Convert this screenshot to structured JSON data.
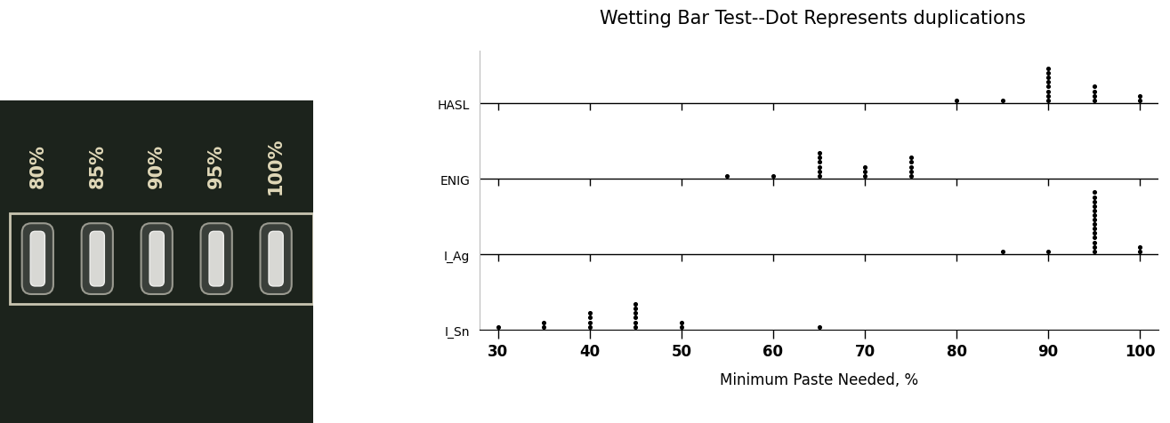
{
  "photo": {
    "labels": [
      "80%",
      "85%",
      "90%",
      "95%",
      "100%"
    ]
  },
  "chart_data": {
    "type": "dot",
    "title": "Wetting Bar Test--Dot Represents duplications",
    "x_label": "Minimum Paste Needed, %",
    "categories": [
      "HASL",
      "ENIG",
      "I_Ag",
      "I_Sn"
    ],
    "values": [
      [
        80,
        85,
        90,
        90,
        90,
        90,
        90,
        90,
        90,
        90,
        95,
        95,
        95,
        95,
        100,
        100
      ],
      [
        55,
        60,
        65,
        65,
        65,
        65,
        65,
        65,
        70,
        70,
        70,
        75,
        75,
        75,
        75,
        75
      ],
      [
        85,
        90,
        95,
        95,
        95,
        95,
        95,
        95,
        95,
        95,
        95,
        95,
        95,
        95,
        95,
        95,
        100,
        100
      ],
      [
        30,
        35,
        35,
        40,
        40,
        40,
        40,
        45,
        45,
        45,
        45,
        45,
        45,
        50,
        50,
        65
      ]
    ],
    "color": "#000000",
    "marker": "o",
    "xlim": [
      28,
      102
    ],
    "xticks": [
      30,
      40,
      50,
      60,
      70,
      80,
      90,
      100
    ]
  }
}
